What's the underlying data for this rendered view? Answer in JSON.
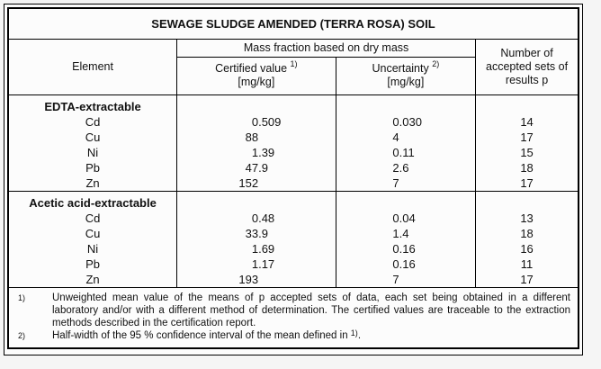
{
  "title": "SEWAGE SLUDGE AMENDED (TERRA ROSA) SOIL",
  "header": {
    "element": "Element",
    "mass_fraction_group": "Mass fraction based on dry mass",
    "certified_value": {
      "label": "Certified value",
      "sup": "1)",
      "unit": "[mg/kg]"
    },
    "uncertainty": {
      "label": "Uncertainty",
      "sup": "2)",
      "unit": "[mg/kg]"
    },
    "accepted_sets": "Number of\naccepted sets of\nresults p"
  },
  "sections": [
    {
      "name": "EDTA-extractable",
      "rows": [
        {
          "element": "Cd",
          "certified": "0.509",
          "uncertainty": "0.030",
          "sets": "14"
        },
        {
          "element": "Cu",
          "certified": "88",
          "uncertainty": "4",
          "sets": "17"
        },
        {
          "element": "Ni",
          "certified": "1.39",
          "uncertainty": "0.11",
          "sets": "15"
        },
        {
          "element": "Pb",
          "certified": "47.9",
          "uncertainty": "2.6",
          "sets": "18"
        },
        {
          "element": "Zn",
          "certified": "152",
          "uncertainty": "7",
          "sets": "17"
        }
      ]
    },
    {
      "name": "Acetic acid-extractable",
      "rows": [
        {
          "element": "Cd",
          "certified": "0.48",
          "uncertainty": "0.04",
          "sets": "13"
        },
        {
          "element": "Cu",
          "certified": "33.9",
          "uncertainty": "1.4",
          "sets": "18"
        },
        {
          "element": "Ni",
          "certified": "1.69",
          "uncertainty": "0.16",
          "sets": "16"
        },
        {
          "element": "Pb",
          "certified": "1.17",
          "uncertainty": "0.16",
          "sets": "11"
        },
        {
          "element": "Zn",
          "certified": "193",
          "uncertainty": "7",
          "sets": "17"
        }
      ]
    }
  ],
  "footnotes": [
    {
      "marker": "1)",
      "text": "Unweighted mean value of the means of p accepted sets of data, each set being obtained in a different laboratory and/or with a different method of determination. The certified values are traceable to the extraction methods described in the certification report.",
      "justify": true
    },
    {
      "marker": "2)",
      "text_before": "Half-width of the 95 % confidence interval of the mean defined in ",
      "text_sup": "1)",
      "text_after": ".",
      "justify": false
    }
  ],
  "colors": {
    "border": "#000000",
    "text": "#111111",
    "page_background": "#f5f5f5",
    "table_background": "#fcfcfc"
  }
}
